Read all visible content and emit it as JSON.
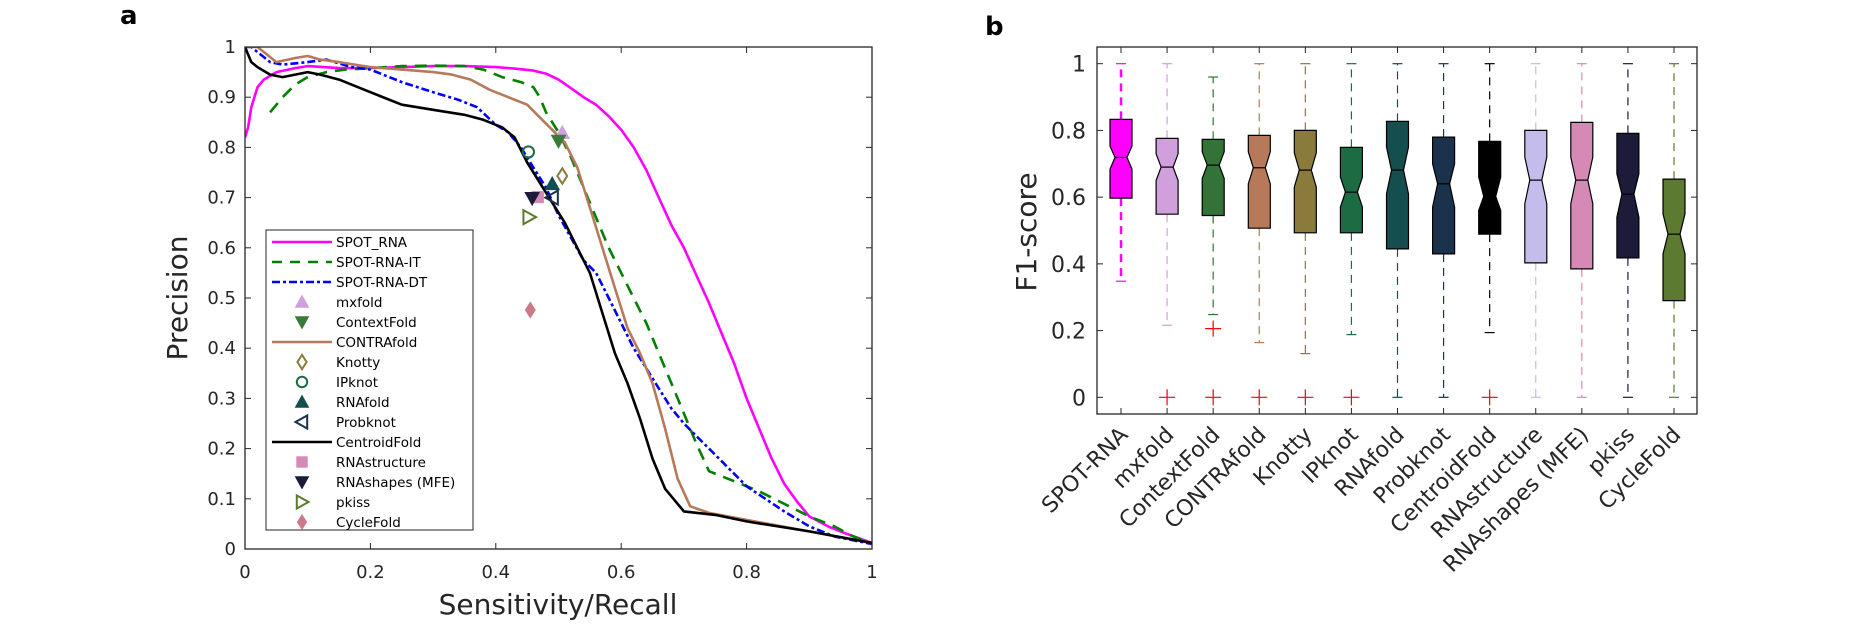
{
  "chart_data": [
    {
      "panel": "a",
      "type": "line",
      "title": "",
      "xlabel": "Sensitivity/Recall",
      "ylabel": "Precision",
      "xlim": [
        0,
        1
      ],
      "ylim": [
        0,
        1
      ],
      "xticks": [
        0,
        0.2,
        0.4,
        0.6,
        0.8,
        1
      ],
      "xtick_labels": [
        "0",
        "0.2",
        "0.4",
        "0.6",
        "0.8",
        "1"
      ],
      "yticks": [
        0,
        0.1,
        0.2,
        0.3,
        0.4,
        0.5,
        0.6,
        0.7,
        0.8,
        0.9,
        1
      ],
      "ytick_labels": [
        "0",
        "0.1",
        "0.2",
        "0.3",
        "0.4",
        "0.5",
        "0.6",
        "0.7",
        "0.8",
        "0.9",
        "1"
      ],
      "grid": false,
      "legend_position": "bottom-left",
      "series": [
        {
          "name": "SPOT_RNA",
          "kind": "line",
          "style": "solid",
          "color": "#ff00ff",
          "x": [
            0,
            0.005,
            0.01,
            0.02,
            0.03,
            0.05,
            0.08,
            0.1,
            0.15,
            0.2,
            0.25,
            0.3,
            0.35,
            0.4,
            0.43,
            0.46,
            0.48,
            0.5,
            0.52,
            0.54,
            0.56,
            0.58,
            0.6,
            0.62,
            0.64,
            0.66,
            0.68,
            0.7,
            0.72,
            0.74,
            0.76,
            0.78,
            0.8,
            0.82,
            0.84,
            0.86,
            0.88,
            0.9,
            0.93,
            0.96,
            1.0
          ],
          "y": [
            0.82,
            0.84,
            0.88,
            0.92,
            0.935,
            0.95,
            0.958,
            0.962,
            0.958,
            0.958,
            0.96,
            0.962,
            0.962,
            0.96,
            0.957,
            0.953,
            0.947,
            0.935,
            0.918,
            0.9,
            0.885,
            0.862,
            0.835,
            0.8,
            0.755,
            0.7,
            0.645,
            0.6,
            0.545,
            0.49,
            0.43,
            0.37,
            0.3,
            0.24,
            0.18,
            0.13,
            0.095,
            0.065,
            0.045,
            0.03,
            0.012
          ]
        },
        {
          "name": "SPOT-RNA-IT",
          "kind": "line",
          "style": "dashed",
          "color": "#008000",
          "x": [
            0.04,
            0.06,
            0.08,
            0.1,
            0.13,
            0.16,
            0.2,
            0.25,
            0.3,
            0.35,
            0.38,
            0.41,
            0.44,
            0.46,
            0.47,
            0.48,
            0.5,
            0.52,
            0.54,
            0.56,
            0.58,
            0.6,
            0.62,
            0.64,
            0.66,
            0.68,
            0.7,
            0.72,
            0.74,
            0.78,
            0.82,
            0.86,
            0.9,
            0.94,
            0.97,
            1.0
          ],
          "y": [
            0.87,
            0.9,
            0.925,
            0.94,
            0.95,
            0.955,
            0.958,
            0.962,
            0.963,
            0.962,
            0.955,
            0.94,
            0.93,
            0.92,
            0.9,
            0.87,
            0.83,
            0.78,
            0.72,
            0.66,
            0.6,
            0.55,
            0.5,
            0.45,
            0.39,
            0.33,
            0.27,
            0.21,
            0.155,
            0.135,
            0.115,
            0.09,
            0.065,
            0.045,
            0.025,
            0.012
          ]
        },
        {
          "name": "SPOT-RNA-DT",
          "kind": "line",
          "style": "dashdot",
          "color": "#0000ff",
          "x": [
            0,
            0.01,
            0.02,
            0.04,
            0.06,
            0.1,
            0.13,
            0.17,
            0.2,
            0.25,
            0.3,
            0.34,
            0.37,
            0.4,
            0.42,
            0.44,
            0.46,
            0.48,
            0.5,
            0.52,
            0.54,
            0.56,
            0.58,
            0.6,
            0.62,
            0.64,
            0.66,
            0.68,
            0.7,
            0.72,
            0.74,
            0.76,
            0.78,
            0.8,
            0.83,
            0.86,
            0.9,
            0.94,
            1.0
          ],
          "y": [
            1.0,
            1.0,
            0.99,
            0.97,
            0.965,
            0.97,
            0.975,
            0.96,
            0.955,
            0.93,
            0.91,
            0.895,
            0.88,
            0.845,
            0.83,
            0.8,
            0.76,
            0.72,
            0.665,
            0.62,
            0.575,
            0.55,
            0.5,
            0.45,
            0.4,
            0.36,
            0.32,
            0.28,
            0.25,
            0.225,
            0.2,
            0.175,
            0.15,
            0.125,
            0.1,
            0.075,
            0.045,
            0.025,
            0.01
          ]
        },
        {
          "name": "mxfold",
          "kind": "marker",
          "marker": "triangle-up",
          "filled": true,
          "color": "#cfa0dc",
          "x": [
            0.506
          ],
          "y": [
            0.829
          ]
        },
        {
          "name": "ContextFold",
          "kind": "marker",
          "marker": "triangle-down",
          "filled": true,
          "color": "#3a7a3a",
          "x": [
            0.5
          ],
          "y": [
            0.813
          ]
        },
        {
          "name": "CONTRAfold",
          "kind": "line",
          "style": "solid",
          "color": "#b67a5a",
          "x": [
            0,
            0.02,
            0.03,
            0.05,
            0.08,
            0.1,
            0.12,
            0.15,
            0.2,
            0.25,
            0.3,
            0.33,
            0.36,
            0.39,
            0.42,
            0.45,
            0.47,
            0.49,
            0.51,
            0.53,
            0.55,
            0.57,
            0.59,
            0.61,
            0.63,
            0.65,
            0.67,
            0.69,
            0.71,
            0.74,
            0.8,
            0.9,
            1.0
          ],
          "y": [
            1.0,
            1.0,
            0.99,
            0.97,
            0.978,
            0.982,
            0.975,
            0.97,
            0.96,
            0.955,
            0.95,
            0.945,
            0.935,
            0.915,
            0.9,
            0.885,
            0.86,
            0.835,
            0.81,
            0.76,
            0.68,
            0.6,
            0.52,
            0.44,
            0.39,
            0.33,
            0.24,
            0.14,
            0.085,
            0.072,
            0.058,
            0.035,
            0.012
          ]
        },
        {
          "name": "Knotty",
          "kind": "marker",
          "marker": "diamond",
          "filled": false,
          "color": "#8a7a3c",
          "x": [
            0.506
          ],
          "y": [
            0.743
          ]
        },
        {
          "name": "IPknot",
          "kind": "marker",
          "marker": "circle",
          "filled": false,
          "color": "#1d6b42",
          "x": [
            0.452
          ],
          "y": [
            0.791
          ]
        },
        {
          "name": "RNAfold",
          "kind": "marker",
          "marker": "triangle-up",
          "filled": true,
          "color": "#154e4e",
          "x": [
            0.49
          ],
          "y": [
            0.727
          ]
        },
        {
          "name": "Probknot",
          "kind": "marker",
          "marker": "triangle-left",
          "filled": false,
          "color": "#1b324c",
          "x": [
            0.49
          ],
          "y": [
            0.7
          ]
        },
        {
          "name": "CentroidFold",
          "kind": "line",
          "style": "solid",
          "color": "#000000",
          "x": [
            0,
            0.01,
            0.02,
            0.04,
            0.06,
            0.08,
            0.1,
            0.12,
            0.15,
            0.2,
            0.25,
            0.3,
            0.35,
            0.38,
            0.41,
            0.43,
            0.45,
            0.47,
            0.49,
            0.51,
            0.53,
            0.55,
            0.57,
            0.59,
            0.61,
            0.63,
            0.65,
            0.67,
            0.7,
            0.75,
            0.8,
            0.9,
            1.0
          ],
          "y": [
            1.0,
            0.97,
            0.96,
            0.945,
            0.94,
            0.945,
            0.95,
            0.945,
            0.935,
            0.91,
            0.885,
            0.875,
            0.865,
            0.855,
            0.84,
            0.82,
            0.77,
            0.73,
            0.69,
            0.65,
            0.6,
            0.55,
            0.47,
            0.39,
            0.33,
            0.26,
            0.18,
            0.12,
            0.075,
            0.068,
            0.055,
            0.035,
            0.012
          ]
        },
        {
          "name": "RNAstructure",
          "kind": "marker",
          "marker": "square",
          "filled": true,
          "color": "#d58ab6",
          "x": [
            0.467
          ],
          "y": [
            0.701
          ]
        },
        {
          "name": "RNAshapes (MFE)",
          "kind": "marker",
          "marker": "triangle-down",
          "filled": true,
          "color": "#1c1b3a",
          "x": [
            0.458
          ],
          "y": [
            0.699
          ]
        },
        {
          "name": "pkiss",
          "kind": "marker",
          "marker": "triangle-right",
          "filled": false,
          "color": "#5c7a30",
          "x": [
            0.453
          ],
          "y": [
            0.661
          ]
        },
        {
          "name": "CycleFold",
          "kind": "marker",
          "marker": "diamond",
          "filled": true,
          "color": "#cc7a88",
          "x": [
            0.455
          ],
          "y": [
            0.476
          ]
        }
      ]
    },
    {
      "panel": "b",
      "type": "boxplot",
      "title": "",
      "xlabel": "",
      "ylabel": "F1-score",
      "ylim": [
        -0.05,
        1.05
      ],
      "yticks": [
        0,
        0.2,
        0.4,
        0.6,
        0.8,
        1
      ],
      "ytick_labels": [
        "0",
        "0.2",
        "0.4",
        "0.6",
        "0.8",
        "1"
      ],
      "grid": false,
      "notched": true,
      "categories": [
        "SPOT-RNA",
        "mxfold",
        "ContextFold",
        "CONTRAfold",
        "Knotty",
        "IPknot",
        "RNAfold",
        "Probknot",
        "CentroidFold",
        "RNAstructure",
        "RNAshapes (MFE)",
        "pkiss",
        "CycleFold"
      ],
      "boxes": [
        {
          "name": "SPOT-RNA",
          "color": "#ff00ff",
          "q1": 0.597,
          "median": 0.719,
          "q3": 0.833,
          "notch_low": 0.684,
          "notch_high": 0.753,
          "whisker_low": 0.348,
          "whisker_high": 1.0,
          "outliers": []
        },
        {
          "name": "mxfold",
          "color": "#d0a0dc",
          "q1": 0.549,
          "median": 0.69,
          "q3": 0.776,
          "notch_low": 0.65,
          "notch_high": 0.73,
          "whisker_low": 0.216,
          "whisker_high": 1.0,
          "outliers": [
            0
          ]
        },
        {
          "name": "ContextFold",
          "color": "#337338",
          "q1": 0.545,
          "median": 0.696,
          "q3": 0.773,
          "notch_low": 0.656,
          "notch_high": 0.736,
          "whisker_low": 0.248,
          "whisker_high": 0.96,
          "outliers": [
            0.206,
            0
          ]
        },
        {
          "name": "CONTRAfold",
          "color": "#b67a5a",
          "q1": 0.507,
          "median": 0.688,
          "q3": 0.785,
          "notch_low": 0.64,
          "notch_high": 0.736,
          "whisker_low": 0.164,
          "whisker_high": 1.0,
          "outliers": [
            0
          ]
        },
        {
          "name": "Knotty",
          "color": "#8a7a3c",
          "q1": 0.493,
          "median": 0.681,
          "q3": 0.8,
          "notch_low": 0.63,
          "notch_high": 0.733,
          "whisker_low": 0.131,
          "whisker_high": 1.0,
          "outliers": [
            0
          ]
        },
        {
          "name": "IPknot",
          "color": "#1d6b42",
          "q1": 0.493,
          "median": 0.615,
          "q3": 0.749,
          "notch_low": 0.57,
          "notch_high": 0.66,
          "whisker_low": 0.188,
          "whisker_high": 1.0,
          "outliers": [
            0
          ]
        },
        {
          "name": "RNAfold",
          "color": "#154e4e",
          "q1": 0.445,
          "median": 0.681,
          "q3": 0.827,
          "notch_low": 0.61,
          "notch_high": 0.75,
          "whisker_low": 0.0,
          "whisker_high": 1.0,
          "outliers": []
        },
        {
          "name": "Probknot",
          "color": "#1b324c",
          "q1": 0.43,
          "median": 0.64,
          "q3": 0.78,
          "notch_low": 0.57,
          "notch_high": 0.7,
          "whisker_low": 0.0,
          "whisker_high": 1.0,
          "outliers": []
        },
        {
          "name": "CentroidFold",
          "color": "#000000",
          "q1": 0.489,
          "median": 0.602,
          "q3": 0.767,
          "notch_low": 0.56,
          "notch_high": 0.66,
          "whisker_low": 0.194,
          "whisker_high": 1.0,
          "outliers": [
            0
          ]
        },
        {
          "name": "RNAstructure",
          "color": "#c5bcec",
          "q1": 0.403,
          "median": 0.651,
          "q3": 0.8,
          "notch_low": 0.58,
          "notch_high": 0.72,
          "whisker_low": 0.0,
          "whisker_high": 1.0,
          "outliers": []
        },
        {
          "name": "RNAshapes (MFE)",
          "color": "#d58ab6",
          "q1": 0.385,
          "median": 0.651,
          "q3": 0.824,
          "notch_low": 0.58,
          "notch_high": 0.72,
          "whisker_low": 0.0,
          "whisker_high": 1.0,
          "outliers": []
        },
        {
          "name": "pkiss",
          "color": "#1c1b3a",
          "q1": 0.418,
          "median": 0.609,
          "q3": 0.791,
          "notch_low": 0.54,
          "notch_high": 0.67,
          "whisker_low": 0.0,
          "whisker_high": 1.0,
          "outliers": []
        },
        {
          "name": "CycleFold",
          "color": "#5c7a30",
          "q1": 0.29,
          "median": 0.489,
          "q3": 0.654,
          "notch_low": 0.43,
          "notch_high": 0.55,
          "whisker_low": 0.0,
          "whisker_high": 1.0,
          "outliers": []
        }
      ]
    }
  ],
  "panel_labels": {
    "a": "a",
    "b": "b"
  }
}
